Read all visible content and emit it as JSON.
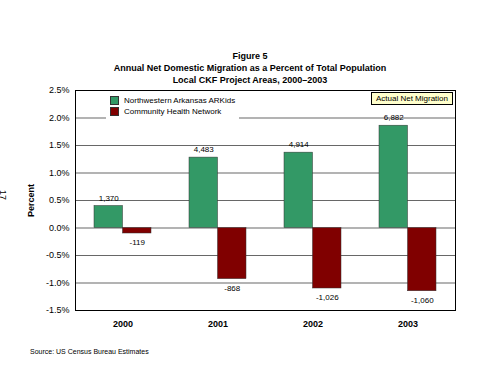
{
  "chart_data": {
    "type": "bar",
    "title": "Figure 5",
    "subtitle": [
      "Annual Net Domestic Migration as a Percent of Total Population",
      "Local CKF Project Areas, 2000–2003"
    ],
    "y_label": "Percent",
    "categories": [
      "2000",
      "2001",
      "2002",
      "2003"
    ],
    "series": [
      {
        "name": "Northwestern Arkansas ARKids",
        "color": "#339966",
        "values": [
          0.4,
          1.28,
          1.37,
          1.86
        ],
        "net_migration": [
          1370,
          4483,
          4914,
          6882
        ]
      },
      {
        "name": "Community Health Network",
        "color": "#800000",
        "values": [
          -0.1,
          -0.93,
          -1.1,
          -1.15
        ],
        "net_migration": [
          -119,
          -868,
          -1026,
          -1060
        ]
      }
    ],
    "annotations": [
      "Actual Net Migration"
    ],
    "source": "Source: US Census Bureau Estimates",
    "page_number": "17",
    "ylim": [
      -1.5,
      2.5
    ],
    "yticks": [
      {
        "value": -1.5,
        "label": "-1.5%"
      },
      {
        "value": -1.0,
        "label": "-1.0%"
      },
      {
        "value": -0.5,
        "label": "-0.5%"
      },
      {
        "value": 0,
        "label": "0.0%"
      },
      {
        "value": 0.5,
        "label": "0.5%"
      },
      {
        "value": 1.0,
        "label": "1.0%"
      },
      {
        "value": 1.5,
        "label": "1.5%"
      },
      {
        "value": 2.0,
        "label": "2.0%"
      },
      {
        "value": 2.5,
        "label": "2.5%"
      }
    ],
    "grid": true,
    "legend": "top-left"
  }
}
